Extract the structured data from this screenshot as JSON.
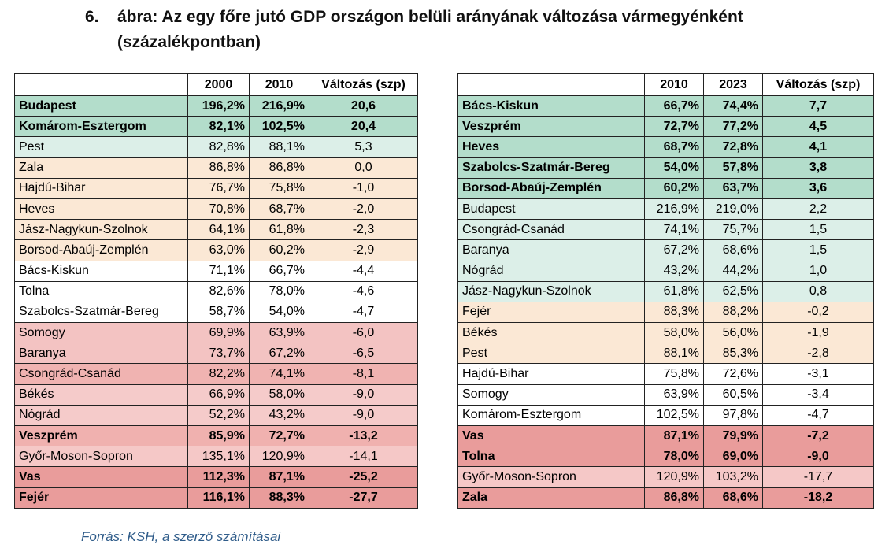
{
  "title": {
    "number": "6.",
    "text": "ábra: Az egy főre jutó GDP országon belüli arányának változása vármegyénként (százalékpontban)"
  },
  "tables": [
    {
      "header": [
        "2000",
        "2010",
        "Változás (szp)"
      ],
      "rows": [
        {
          "cells": [
            "Budapest",
            "196,2%",
            "216,9%",
            "20,6"
          ],
          "color": "#b3ddcb",
          "bold": true
        },
        {
          "cells": [
            "Komárom-Esztergom",
            "82,1%",
            "102,5%",
            "20,4"
          ],
          "color": "#b3ddcb",
          "bold": true
        },
        {
          "cells": [
            "Pest",
            "82,8%",
            "88,1%",
            "5,3"
          ],
          "color": "#dcefe8",
          "bold": false
        },
        {
          "cells": [
            "Zala",
            "86,8%",
            "86,8%",
            "0,0"
          ],
          "color": "#fbe8d5",
          "bold": false
        },
        {
          "cells": [
            "Hajdú-Bihar",
            "76,7%",
            "75,8%",
            "-1,0"
          ],
          "color": "#fbe8d5",
          "bold": false
        },
        {
          "cells": [
            "Heves",
            "70,8%",
            "68,7%",
            "-2,0"
          ],
          "color": "#fbe8d5",
          "bold": false
        },
        {
          "cells": [
            "Jász-Nagykun-Szolnok",
            "64,1%",
            "61,8%",
            "-2,3"
          ],
          "color": "#fbe8d5",
          "bold": false
        },
        {
          "cells": [
            "Borsod-Abaúj-Zemplén",
            "63,0%",
            "60,2%",
            "-2,9"
          ],
          "color": "#fbe8d5",
          "bold": false
        },
        {
          "cells": [
            "Bács-Kiskun",
            "71,1%",
            "66,7%",
            "-4,4"
          ],
          "color": "#ffffff",
          "bold": false
        },
        {
          "cells": [
            "Tolna",
            "82,6%",
            "78,0%",
            "-4,6"
          ],
          "color": "#ffffff",
          "bold": false
        },
        {
          "cells": [
            "Szabolcs-Szatmár-Bereg",
            "58,7%",
            "54,0%",
            "-4,7"
          ],
          "color": "#ffffff",
          "bold": false
        },
        {
          "cells": [
            "Somogy",
            "69,9%",
            "63,9%",
            "-6,0"
          ],
          "color": "#f3c3c2",
          "bold": false
        },
        {
          "cells": [
            "Baranya",
            "73,7%",
            "67,2%",
            "-6,5"
          ],
          "color": "#f3c3c2",
          "bold": false
        },
        {
          "cells": [
            "Csongrád-Csanád",
            "82,2%",
            "74,1%",
            "-8,1"
          ],
          "color": "#f0b3b1",
          "bold": false
        },
        {
          "cells": [
            "Békés",
            "66,9%",
            "58,0%",
            "-9,0"
          ],
          "color": "#f5cbca",
          "bold": false
        },
        {
          "cells": [
            "Nógrád",
            "52,2%",
            "43,2%",
            "-9,0"
          ],
          "color": "#f5cbca",
          "bold": false
        },
        {
          "cells": [
            "Veszprém",
            "85,9%",
            "72,7%",
            "-13,2"
          ],
          "color": "#f0b1af",
          "bold": true
        },
        {
          "cells": [
            "Győr-Moson-Sopron",
            "135,1%",
            "120,9%",
            "-14,1"
          ],
          "color": "#f5c8c7",
          "bold": false
        },
        {
          "cells": [
            "Vas",
            "112,3%",
            "87,1%",
            "-25,2"
          ],
          "color": "#e99c9b",
          "bold": true
        },
        {
          "cells": [
            "Fejér",
            "116,1%",
            "88,3%",
            "-27,7"
          ],
          "color": "#e99c9b",
          "bold": true
        }
      ]
    },
    {
      "header": [
        "2010",
        "2023",
        "Változás (szp)"
      ],
      "rows": [
        {
          "cells": [
            "Bács-Kiskun",
            "66,7%",
            "74,4%",
            "7,7"
          ],
          "color": "#b3ddcb",
          "bold": true
        },
        {
          "cells": [
            "Veszprém",
            "72,7%",
            "77,2%",
            "4,5"
          ],
          "color": "#b3ddcb",
          "bold": true
        },
        {
          "cells": [
            "Heves",
            "68,7%",
            "72,8%",
            "4,1"
          ],
          "color": "#b3ddcb",
          "bold": true
        },
        {
          "cells": [
            "Szabolcs-Szatmár-Bereg",
            "54,0%",
            "57,8%",
            "3,8"
          ],
          "color": "#b3ddcb",
          "bold": true
        },
        {
          "cells": [
            "Borsod-Abaúj-Zemplén",
            "60,2%",
            "63,7%",
            "3,6"
          ],
          "color": "#b3ddcb",
          "bold": true
        },
        {
          "cells": [
            "Budapest",
            "216,9%",
            "219,0%",
            "2,2"
          ],
          "color": "#dcefe8",
          "bold": false
        },
        {
          "cells": [
            "Csongrád-Csanád",
            "74,1%",
            "75,7%",
            "1,5"
          ],
          "color": "#dcefe8",
          "bold": false
        },
        {
          "cells": [
            "Baranya",
            "67,2%",
            "68,6%",
            "1,5"
          ],
          "color": "#dcefe8",
          "bold": false
        },
        {
          "cells": [
            "Nógrád",
            "43,2%",
            "44,2%",
            "1,0"
          ],
          "color": "#dcefe8",
          "bold": false
        },
        {
          "cells": [
            "Jász-Nagykun-Szolnok",
            "61,8%",
            "62,5%",
            "0,8"
          ],
          "color": "#dcefe8",
          "bold": false
        },
        {
          "cells": [
            "Fejér",
            "88,3%",
            "88,2%",
            "-0,2"
          ],
          "color": "#fbe8d5",
          "bold": false
        },
        {
          "cells": [
            "Békés",
            "58,0%",
            "56,0%",
            "-1,9"
          ],
          "color": "#fbe8d5",
          "bold": false
        },
        {
          "cells": [
            "Pest",
            "88,1%",
            "85,3%",
            "-2,8"
          ],
          "color": "#fbe8d5",
          "bold": false
        },
        {
          "cells": [
            "Hajdú-Bihar",
            "75,8%",
            "72,6%",
            "-3,1"
          ],
          "color": "#ffffff",
          "bold": false
        },
        {
          "cells": [
            "Somogy",
            "63,9%",
            "60,5%",
            "-3,4"
          ],
          "color": "#ffffff",
          "bold": false
        },
        {
          "cells": [
            "Komárom-Esztergom",
            "102,5%",
            "97,8%",
            "-4,7"
          ],
          "color": "#ffffff",
          "bold": false
        },
        {
          "cells": [
            "Vas",
            "87,1%",
            "79,9%",
            "-7,2"
          ],
          "color": "#e99c9b",
          "bold": true
        },
        {
          "cells": [
            "Tolna",
            "78,0%",
            "69,0%",
            "-9,0"
          ],
          "color": "#e99c9b",
          "bold": true
        },
        {
          "cells": [
            "Győr-Moson-Sopron",
            "120,9%",
            "103,2%",
            "-17,7"
          ],
          "color": "#f5c8c7",
          "bold": false
        },
        {
          "cells": [
            "Zala",
            "86,8%",
            "68,6%",
            "-18,2"
          ],
          "color": "#e99c9b",
          "bold": true
        }
      ]
    }
  ],
  "source": "Forrás: KSH, a szerző számításai"
}
